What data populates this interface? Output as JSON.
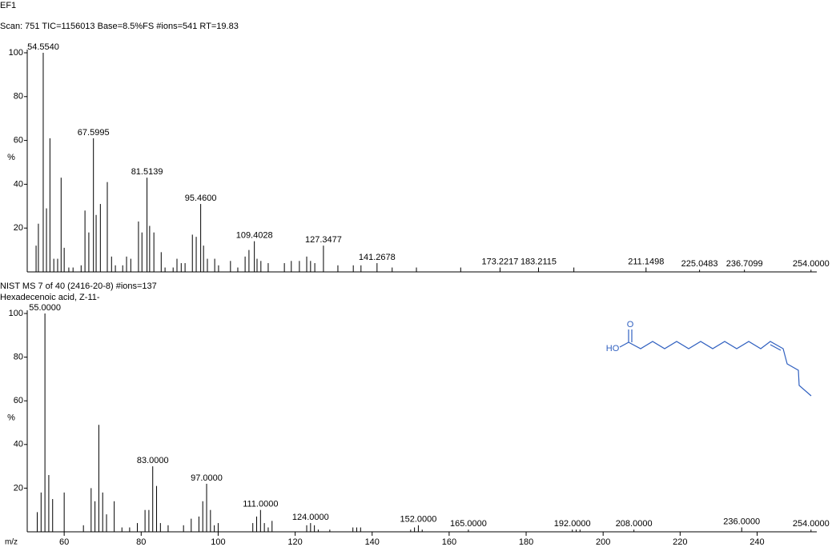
{
  "chart_data": [
    {
      "type": "stem",
      "title": "EF1",
      "subtitle": "Scan: 751   TIC=1156013   Base=8.5%FS   #ions=541   RT=19.83",
      "ylabel": "%",
      "xlim": [
        50.4,
        255.5
      ],
      "ylim": [
        0,
        100
      ],
      "yticks": [
        20,
        40,
        60,
        80,
        100
      ],
      "color": "#000000",
      "x": [
        52.7,
        53.3,
        54.554,
        55.4,
        56.3,
        57.3,
        58.3,
        59.2,
        60,
        61.2,
        62.3,
        64.4,
        65.4,
        66.4,
        67.5995,
        68.3,
        69.4,
        71.2,
        72.3,
        73.3,
        75.2,
        76.2,
        77.3,
        79.3,
        80.2,
        81.5139,
        82.2,
        83.3,
        85.2,
        86.2,
        88.3,
        89.3,
        90.4,
        91.4,
        93.3,
        94.3,
        95.46,
        96.2,
        97.2,
        99.1,
        100.1,
        103.2,
        105.1,
        107,
        108,
        109.4028,
        110.1,
        111.1,
        113,
        117.2,
        119,
        121.1,
        123,
        124,
        125.1,
        127.3477,
        131.1,
        135.1,
        137.1,
        141.2678,
        145.2,
        151.5,
        163,
        173.2217,
        183.2115,
        192.4,
        211.1498,
        225.0483,
        236.7099,
        254
      ],
      "x_labels": [
        null,
        null,
        "54.5540",
        null,
        null,
        null,
        null,
        null,
        null,
        null,
        null,
        null,
        null,
        null,
        "67.5995",
        null,
        null,
        null,
        null,
        null,
        null,
        null,
        null,
        null,
        null,
        "81.5139",
        null,
        null,
        null,
        null,
        null,
        null,
        null,
        null,
        null,
        null,
        "95.4600",
        null,
        null,
        null,
        null,
        null,
        null,
        null,
        null,
        "109.4028",
        null,
        null,
        null,
        null,
        null,
        null,
        null,
        null,
        null,
        "127.3477",
        null,
        null,
        null,
        "141.2678",
        null,
        null,
        null,
        "173.2217",
        "183.2115",
        null,
        "211.1498",
        "225.0483",
        "236.7099",
        "254.0000"
      ],
      "values": [
        12,
        22,
        100,
        29,
        61,
        6,
        6,
        43,
        11,
        2,
        2,
        3,
        28,
        18,
        61,
        26,
        31,
        41,
        7,
        3,
        3,
        7,
        6,
        23,
        18,
        43,
        21,
        18,
        9,
        2,
        2,
        6,
        4,
        4,
        17,
        16,
        31,
        12,
        6,
        6,
        3,
        5,
        2,
        7,
        10,
        14,
        6,
        5,
        4,
        4,
        5,
        5,
        7,
        5,
        4,
        12,
        3,
        3,
        3,
        4,
        2,
        2,
        2,
        2,
        2,
        2,
        2,
        1,
        1,
        1
      ]
    },
    {
      "type": "stem",
      "title": "NIST MS 7 of 40 (2416-20-8)   #ions=137",
      "subtitle": "Hexadecenoic acid, Z-11-",
      "ylabel": "%",
      "xlabel": "m/z",
      "xlim": [
        50.4,
        255.5
      ],
      "ylim": [
        0,
        100
      ],
      "yticks": [
        20,
        40,
        60,
        80,
        100
      ],
      "xticks": [
        60,
        80,
        100,
        120,
        140,
        160,
        180,
        200,
        220,
        240
      ],
      "color": "#000000",
      "structure_labels": [
        "O",
        "HO"
      ],
      "x": [
        53,
        54,
        55,
        56,
        57,
        60,
        65,
        67,
        68,
        69,
        70,
        71,
        73,
        75,
        77,
        79,
        81,
        82,
        83,
        84,
        85,
        87,
        91,
        93,
        95,
        96,
        97,
        98,
        99,
        100,
        109,
        110,
        111,
        112,
        113,
        114,
        123,
        124,
        125,
        126,
        129,
        135,
        136,
        137,
        150,
        151,
        152,
        153,
        165,
        192,
        193,
        194,
        208,
        236,
        254
      ],
      "x_labels": [
        null,
        null,
        "55.0000",
        null,
        null,
        null,
        null,
        null,
        null,
        null,
        null,
        null,
        null,
        null,
        null,
        null,
        null,
        null,
        "83.0000",
        null,
        null,
        null,
        null,
        null,
        null,
        null,
        "97.0000",
        null,
        null,
        null,
        null,
        null,
        "111.0000",
        null,
        null,
        null,
        null,
        "124.0000",
        null,
        null,
        null,
        null,
        null,
        null,
        null,
        null,
        "152.0000",
        null,
        "165.0000",
        "192.0000",
        null,
        null,
        "208.0000",
        "236.0000",
        "254.0000"
      ],
      "values": [
        9,
        18,
        100,
        26,
        15,
        18,
        3,
        20,
        14,
        49,
        18,
        8,
        14,
        2,
        2,
        4,
        10,
        10,
        30,
        21,
        4,
        3,
        3,
        6,
        7,
        14,
        22,
        10,
        3,
        4,
        4,
        7,
        10,
        4,
        2,
        5,
        3,
        4,
        3,
        1,
        1,
        2,
        2,
        2,
        1,
        2,
        3,
        1,
        1,
        1,
        1,
        1,
        1,
        2,
        1
      ]
    }
  ]
}
